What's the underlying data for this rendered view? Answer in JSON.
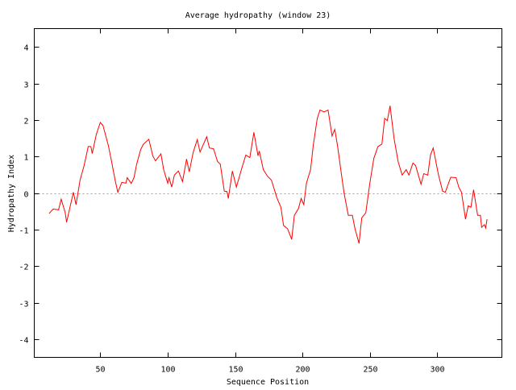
{
  "chart_data": {
    "type": "line",
    "title": "Average hydropathy (window 23)",
    "xlabel": "Sequence Position",
    "ylabel": "Hydropathy Index",
    "xlim": [
      1,
      348
    ],
    "ylim": [
      -4.5,
      4.5
    ],
    "xticks": [
      50,
      100,
      150,
      200,
      250,
      300
    ],
    "yticks": [
      -4,
      -3,
      -2,
      -1,
      0,
      1,
      2,
      3,
      4
    ],
    "grid": false,
    "zero_line": true,
    "series": [
      {
        "color": "#ff0000",
        "x": [
          12,
          15,
          19,
          21,
          24,
          25,
          30,
          32,
          35,
          38,
          41,
          43,
          44,
          47,
          50,
          52,
          56,
          58,
          61,
          63,
          66,
          69,
          70,
          73,
          75,
          77,
          80,
          82,
          86,
          89,
          91,
          95,
          97,
          100,
          101,
          103,
          105,
          108,
          111,
          114,
          116,
          119,
          122,
          124,
          129,
          131,
          134,
          137,
          139,
          142,
          144,
          145,
          148,
          151,
          155,
          158,
          161,
          164,
          167,
          168,
          171,
          174,
          177,
          181,
          184,
          186,
          189,
          192,
          194,
          197,
          199,
          201,
          203,
          206,
          208,
          211,
          213,
          216,
          219,
          222,
          224,
          226,
          229,
          231,
          234,
          237,
          239,
          242,
          244,
          247,
          250,
          253,
          256,
          259,
          261,
          263,
          265,
          268,
          271,
          274,
          277,
          279,
          282,
          284,
          286,
          288,
          290,
          293,
          295,
          297,
          299,
          301,
          304,
          306,
          310,
          314,
          316,
          318,
          321,
          323,
          325,
          327,
          330,
          332,
          333,
          335,
          336,
          337
        ],
        "y": [
          -0.56,
          -0.44,
          -0.46,
          -0.17,
          -0.54,
          -0.8,
          0.02,
          -0.32,
          0.35,
          0.75,
          1.27,
          1.27,
          1.08,
          1.6,
          1.93,
          1.85,
          1.3,
          0.93,
          0.35,
          0.02,
          0.29,
          0.27,
          0.42,
          0.26,
          0.42,
          0.79,
          1.19,
          1.34,
          1.47,
          1.01,
          0.88,
          1.07,
          0.64,
          0.27,
          0.42,
          0.16,
          0.49,
          0.6,
          0.31,
          0.93,
          0.58,
          1.12,
          1.46,
          1.12,
          1.54,
          1.23,
          1.21,
          0.86,
          0.79,
          0.05,
          0.04,
          -0.15,
          0.6,
          0.16,
          0.68,
          1.04,
          0.97,
          1.66,
          1.02,
          1.15,
          0.64,
          0.46,
          0.35,
          -0.13,
          -0.39,
          -0.89,
          -0.98,
          -1.27,
          -0.61,
          -0.43,
          -0.15,
          -0.32,
          0.27,
          0.64,
          1.3,
          2.04,
          2.27,
          2.22,
          2.27,
          1.56,
          1.74,
          1.3,
          0.49,
          -0.02,
          -0.61,
          -0.61,
          -0.98,
          -1.38,
          -0.68,
          -0.54,
          0.27,
          0.95,
          1.27,
          1.34,
          2.04,
          1.98,
          2.39,
          1.49,
          0.86,
          0.49,
          0.64,
          0.49,
          0.82,
          0.75,
          0.49,
          0.24,
          0.53,
          0.49,
          1.04,
          1.23,
          0.86,
          0.49,
          0.05,
          0.02,
          0.43,
          0.42,
          0.16,
          0.02,
          -0.72,
          -0.35,
          -0.39,
          0.09,
          -0.61,
          -0.61,
          -0.94,
          -0.87,
          -0.96,
          -0.72
        ]
      }
    ]
  }
}
